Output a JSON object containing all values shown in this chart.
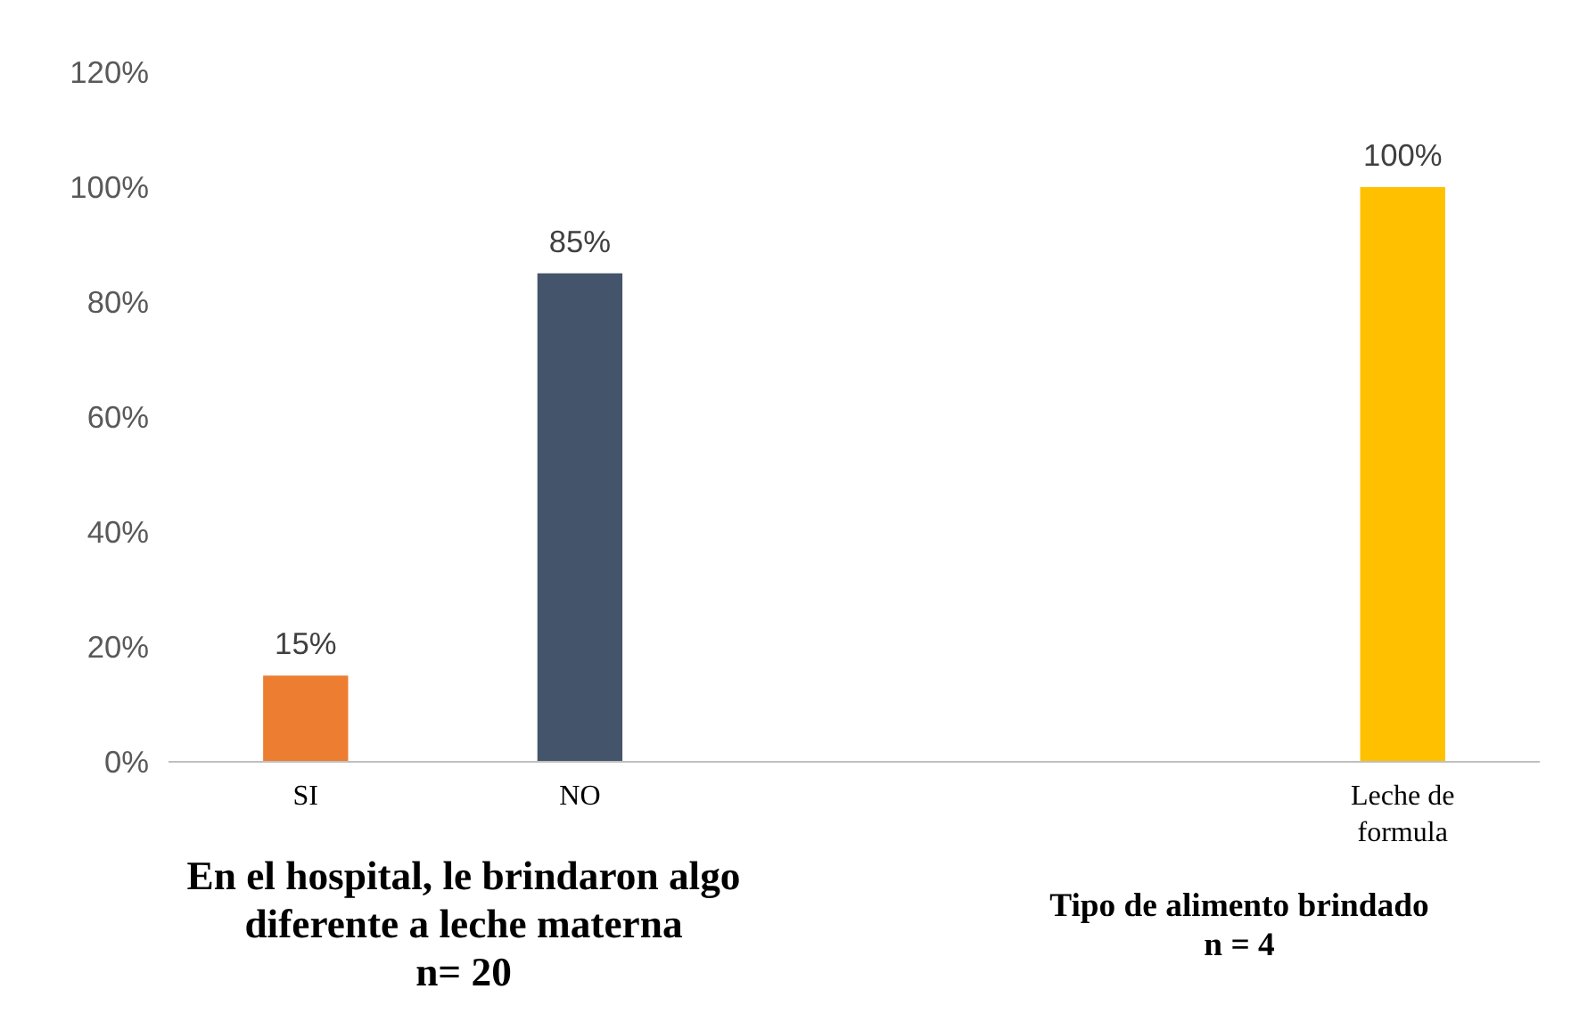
{
  "chart_data": {
    "type": "bar",
    "categories": [
      "SI",
      "NO",
      null,
      null,
      "Leche de\nformula"
    ],
    "values": [
      15,
      85,
      null,
      null,
      100
    ],
    "colors": [
      "#ed7d31",
      "#44546a",
      "#a5a5a5",
      "#a5a5a5",
      "#ffc000"
    ],
    "value_labels": [
      "15%",
      "85%",
      null,
      null,
      "100%"
    ],
    "ylim": [
      0,
      120
    ],
    "yticks": [
      {
        "value": 0,
        "label": "0%"
      },
      {
        "value": 20,
        "label": "20%"
      },
      {
        "value": 40,
        "label": "40%"
      },
      {
        "value": 60,
        "label": "60%"
      },
      {
        "value": 80,
        "label": "80%"
      },
      {
        "value": 100,
        "label": "100%"
      },
      {
        "value": 120,
        "label": "120%"
      }
    ],
    "annotations": [
      "En el hospital, le brindaron algo\ndiferente a leche materna\nn= 20",
      "Tipo de alimento brindado\nn = 4"
    ]
  }
}
